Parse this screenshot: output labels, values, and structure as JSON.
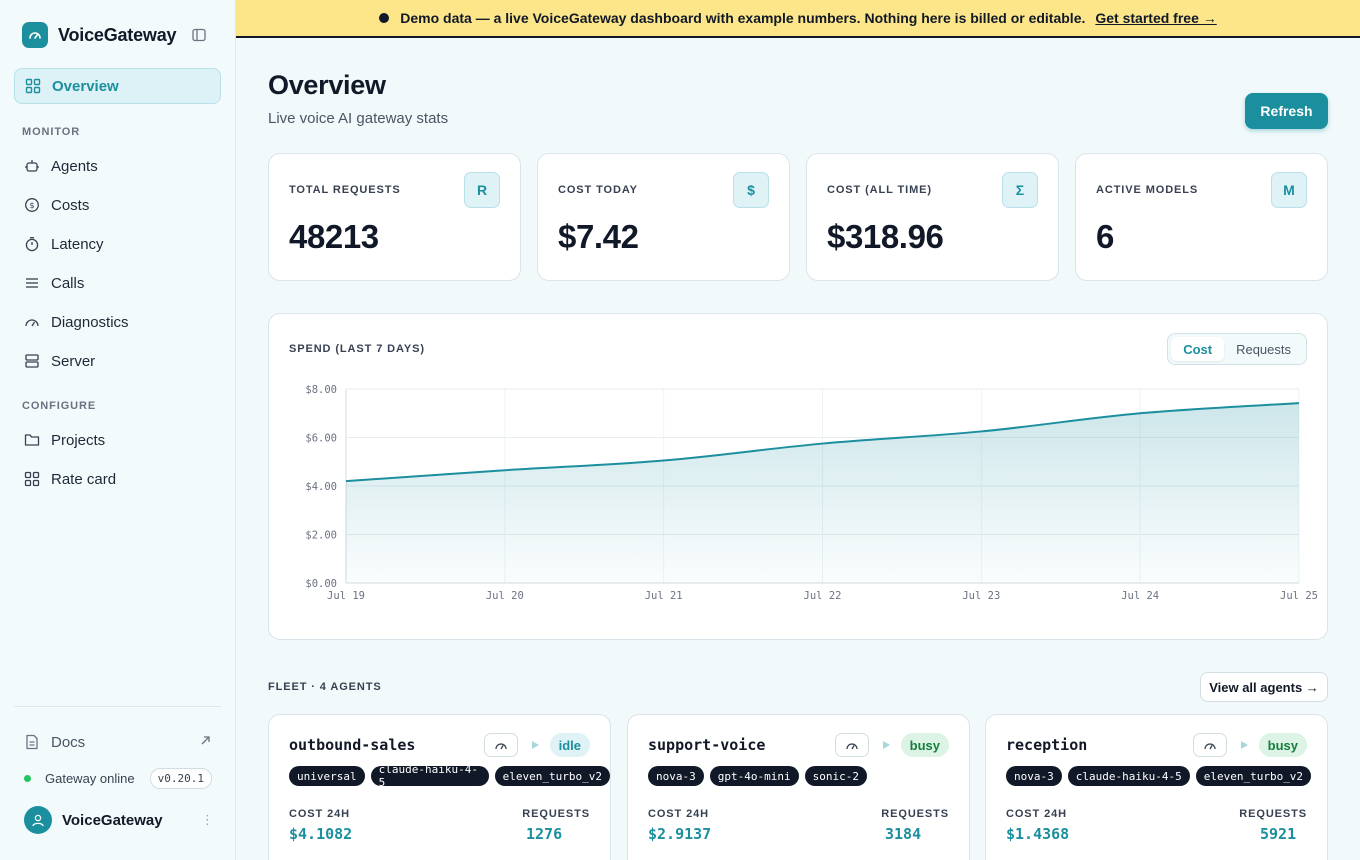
{
  "brand": {
    "name": "VoiceGateway"
  },
  "sidebar": {
    "items": [
      {
        "label": "Overview"
      },
      {
        "label": "Agents"
      },
      {
        "label": "Costs"
      },
      {
        "label": "Latency"
      },
      {
        "label": "Calls"
      },
      {
        "label": "Diagnostics"
      },
      {
        "label": "Server"
      },
      {
        "label": "Projects"
      },
      {
        "label": "Rate card"
      }
    ],
    "sections": {
      "monitor": "MONITOR",
      "configure": "CONFIGURE"
    },
    "docs": "Docs",
    "status": "Gateway online",
    "version": "v0.20.1",
    "user": "VoiceGateway"
  },
  "banner": {
    "text": "Demo data — a live VoiceGateway dashboard with example numbers. Nothing here is billed or editable.",
    "link": "Get started free →"
  },
  "header": {
    "title": "Overview",
    "subtitle": "Live voice AI gateway stats",
    "refresh": "Refresh"
  },
  "stats": [
    {
      "label": "TOTAL REQUESTS",
      "badge": "R",
      "value": "48213"
    },
    {
      "label": "COST TODAY",
      "badge": "$",
      "value": "$7.42"
    },
    {
      "label": "COST (ALL TIME)",
      "badge": "Σ",
      "value": "$318.96"
    },
    {
      "label": "ACTIVE MODELS",
      "badge": "M",
      "value": "6"
    }
  ],
  "spend": {
    "title": "SPEND (LAST 7 DAYS)",
    "toggle": [
      "Cost",
      "Requests"
    ],
    "selected": "Cost"
  },
  "chart_data": {
    "type": "area",
    "x": [
      "Jul 19",
      "Jul 20",
      "Jul 21",
      "Jul 22",
      "Jul 23",
      "Jul 24",
      "Jul 25"
    ],
    "series": [
      {
        "values": [
          4.2,
          4.65,
          5.05,
          5.75,
          6.25,
          7.0,
          7.42
        ]
      }
    ],
    "yticks": [
      "$0.00",
      "$2.00",
      "$4.00",
      "$6.00",
      "$8.00"
    ],
    "ylim": [
      0,
      8
    ],
    "grid": true,
    "color": "#1c8f9f"
  },
  "fleet": {
    "title": "FLEET · 4 AGENTS",
    "view_all": "View all agents →",
    "cost_label": "COST 24H",
    "requests_label": "REQUESTS",
    "agents": [
      {
        "name": "outbound-sales",
        "status": "idle",
        "models": [
          "universal",
          "claude-haiku-4-5",
          "eleven_turbo_v2"
        ],
        "cost": "$4.1082",
        "requests": "1276"
      },
      {
        "name": "support-voice",
        "status": "busy",
        "models": [
          "nova-3",
          "gpt-4o-mini",
          "sonic-2"
        ],
        "cost": "$2.9137",
        "requests": "3184"
      },
      {
        "name": "reception",
        "status": "busy",
        "models": [
          "nova-3",
          "claude-haiku-4-5",
          "eleven_turbo_v2"
        ],
        "cost": "$1.4368",
        "requests": "5921"
      }
    ]
  },
  "colors": {
    "accent": "#1c8f9f",
    "banner": "#fde68a",
    "online": "#22c55e"
  }
}
